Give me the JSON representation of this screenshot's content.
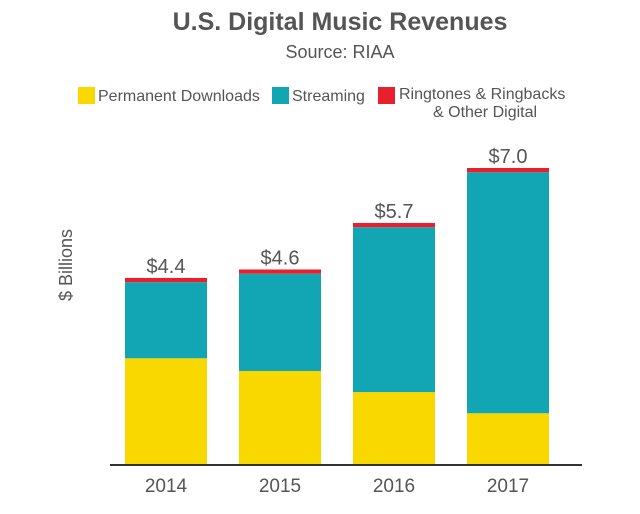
{
  "chart_data": {
    "type": "bar",
    "stacked": true,
    "title": "U.S. Digital Music Revenues",
    "subtitle": "Source: RIAA",
    "xlabel": "",
    "ylabel": "$ Billions",
    "ylim": [
      0,
      7.0
    ],
    "grid": false,
    "legend_position": "top",
    "categories": [
      "2014",
      "2015",
      "2016",
      "2017"
    ],
    "series": [
      {
        "name": "Permanent Downloads",
        "color": "#f9d800",
        "values": [
          2.5,
          2.2,
          1.7,
          1.2
        ]
      },
      {
        "name": "Streaming",
        "color": "#12a5b4",
        "values": [
          1.8,
          2.3,
          3.9,
          5.7
        ]
      },
      {
        "name": "Ringtones & Ringbacks & Other Digital",
        "legend_lines": [
          "Ringtones & Ringbacks",
          "& Other Digital"
        ],
        "color": "#e8202e",
        "values": [
          0.1,
          0.1,
          0.1,
          0.1
        ]
      }
    ],
    "totals": [
      4.4,
      4.6,
      5.7,
      7.0
    ],
    "total_labels": [
      "$4.4",
      "$4.6",
      "$5.7",
      "$7.0"
    ]
  }
}
